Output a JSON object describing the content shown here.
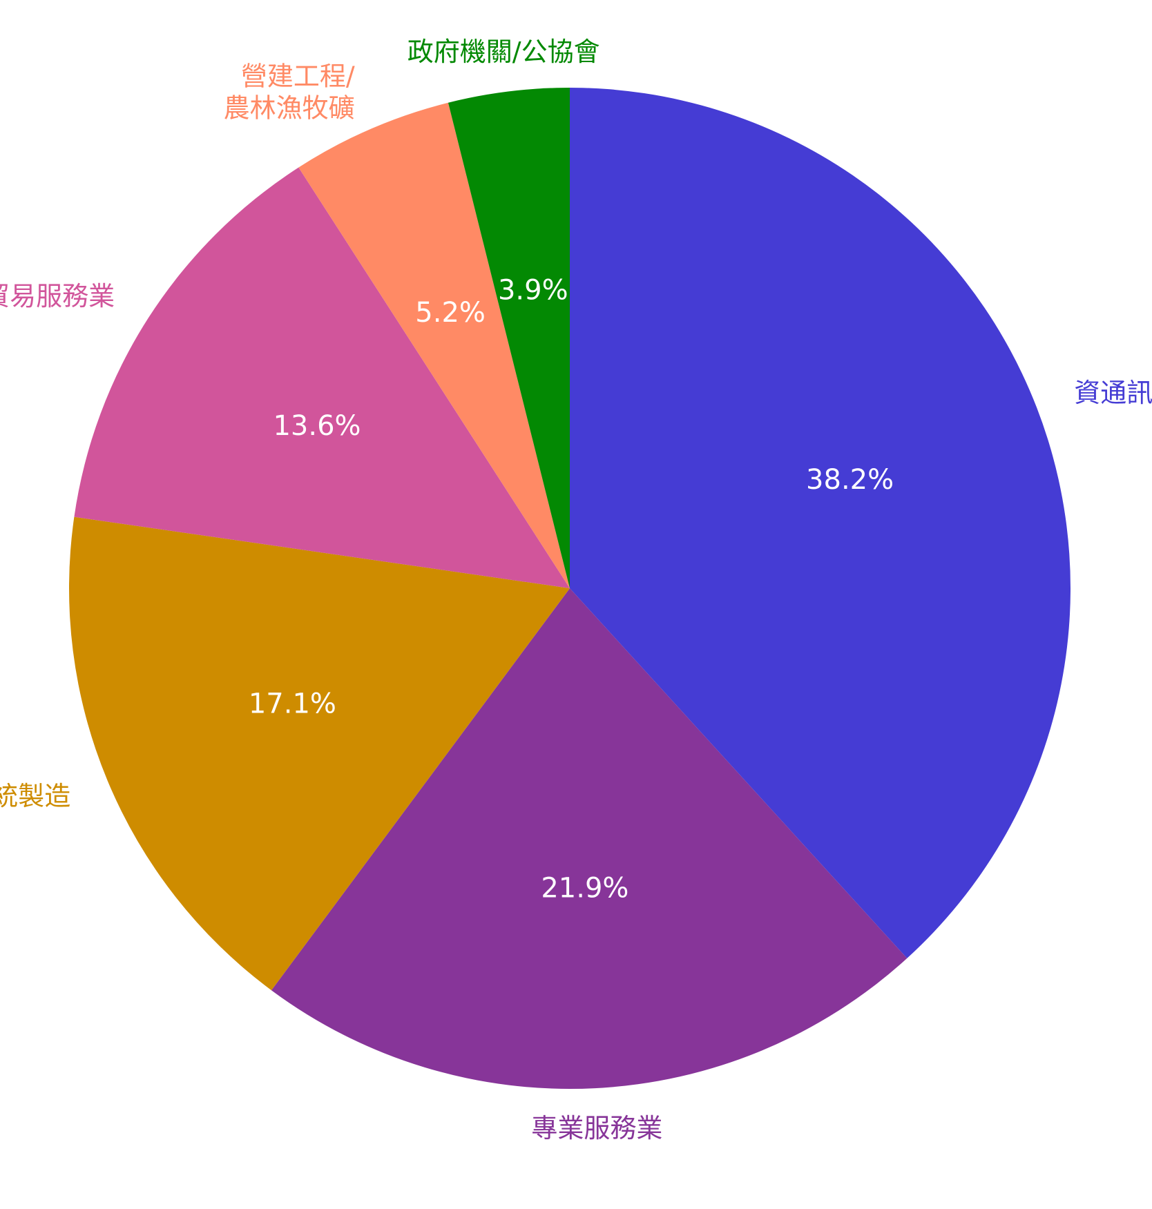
{
  "chart_data": {
    "type": "pie",
    "start_angle_deg": 0,
    "direction": "clockwise",
    "slices": [
      {
        "label": "資通訊科技(ICT)",
        "value": 38.2,
        "value_label": "38.2%",
        "color": "#453CD4"
      },
      {
        "label": "專業服務業",
        "value": 21.9,
        "value_label": "21.9%",
        "color": "#873599"
      },
      {
        "label": "傳統製造",
        "value": 17.1,
        "value_label": "17.1%",
        "color": "#CE8C00"
      },
      {
        "label": "零售貿易服務業",
        "value": 13.6,
        "value_label": "13.6%",
        "color": "#D1559B"
      },
      {
        "label": "營建工程/\n農林漁牧礦",
        "value": 5.2,
        "value_label": "5.2%",
        "color": "#FF8A65"
      },
      {
        "label": "政府機關/公協會",
        "value": 3.9,
        "value_label": "3.9%",
        "color": "#038903"
      }
    ]
  }
}
